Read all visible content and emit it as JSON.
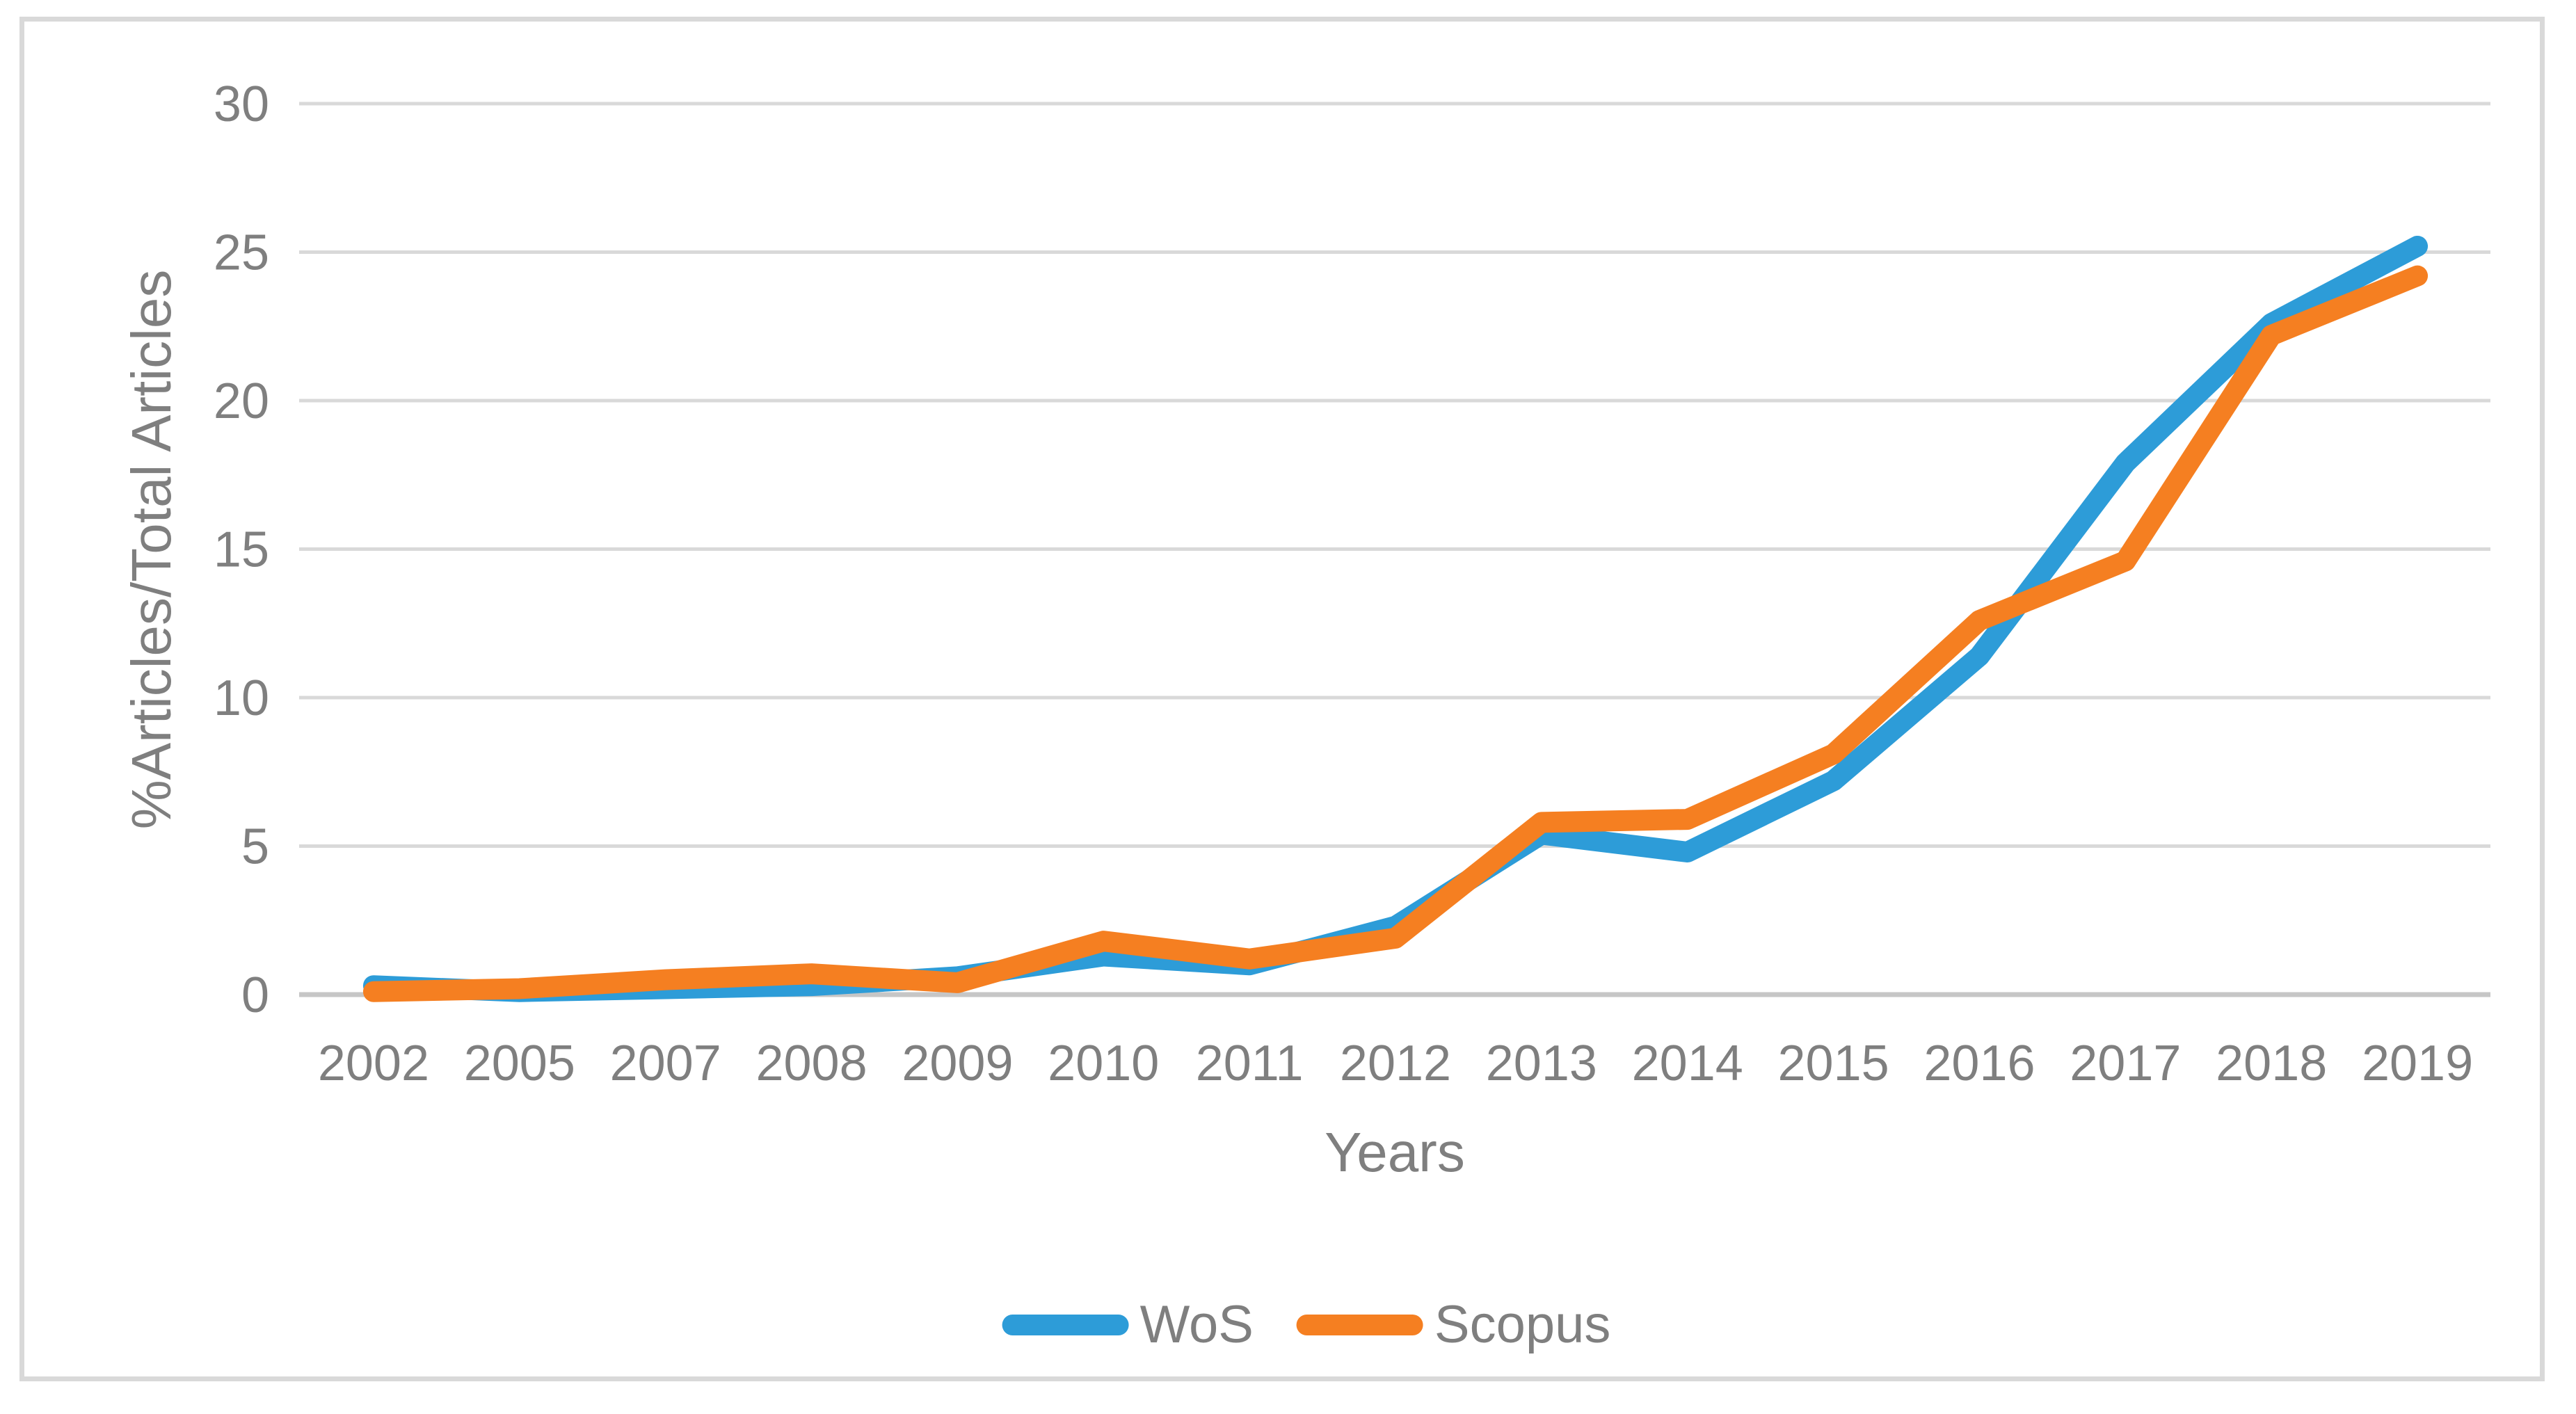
{
  "chart_data": {
    "type": "line",
    "title": "",
    "xlabel": "Years",
    "ylabel": "%Articles/Total Articles",
    "categories": [
      "2002",
      "2005",
      "2007",
      "2008",
      "2009",
      "2010",
      "2011",
      "2012",
      "2013",
      "2014",
      "2015",
      "2016",
      "2017",
      "2018",
      "2019"
    ],
    "series": [
      {
        "name": "WoS",
        "color": "#2d9cd8",
        "values": [
          0.3,
          0.1,
          0.2,
          0.3,
          0.6,
          1.3,
          1.0,
          2.3,
          5.4,
          4.8,
          7.2,
          11.4,
          17.9,
          22.6,
          25.2
        ]
      },
      {
        "name": "Scopus",
        "color": "#f57f21",
        "values": [
          0.1,
          0.2,
          0.5,
          0.7,
          0.4,
          1.8,
          1.2,
          1.9,
          5.8,
          5.9,
          8.1,
          12.6,
          14.6,
          22.2,
          24.2
        ]
      }
    ],
    "ylim": [
      0,
      30
    ],
    "yticks": [
      0,
      5,
      10,
      15,
      20,
      25,
      30
    ],
    "grid": true,
    "legend_position": "bottom"
  },
  "colors": {
    "gridline": "#d9d9d9",
    "axis_line": "#c6c6c6",
    "tick_label": "#7f7f7f",
    "chart_border": "#d9d9d9",
    "background": "#ffffff"
  }
}
